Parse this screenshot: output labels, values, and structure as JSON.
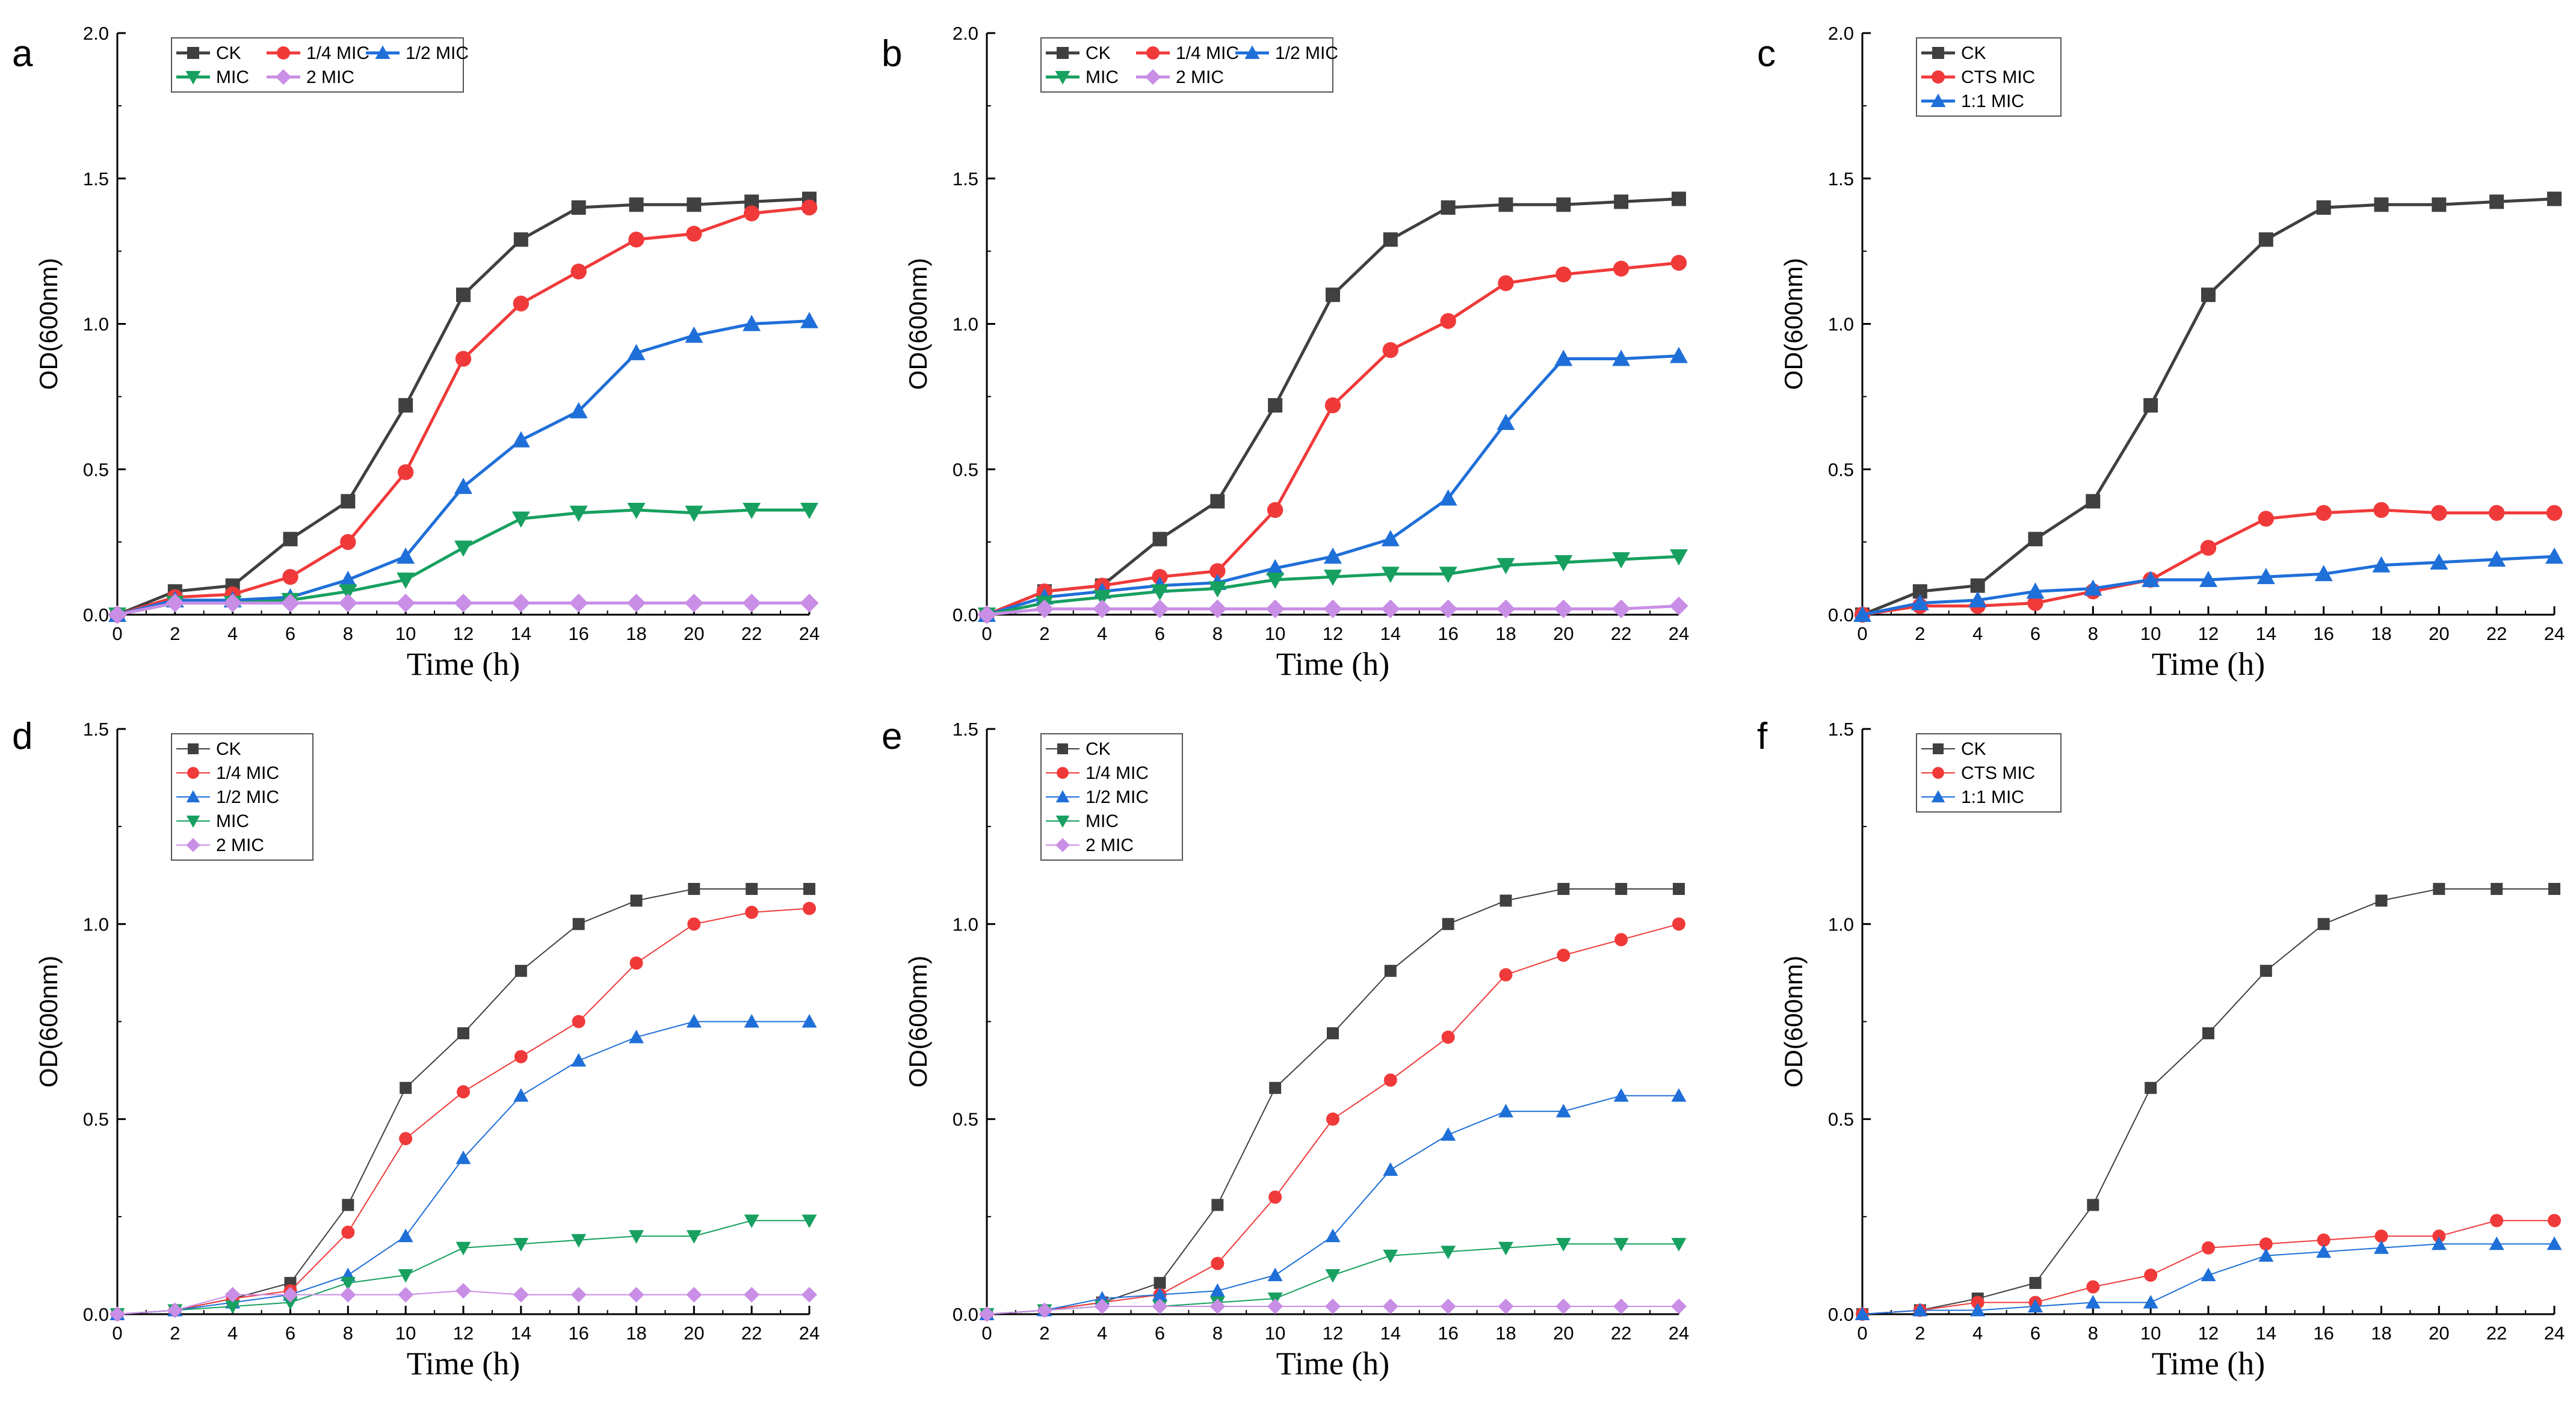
{
  "figure": {
    "colors": {
      "CK": "#404040",
      "1/4 MIC": "#f03a3a",
      "CTS MIC": "#f03a3a",
      "1/2 MIC": "#1f6fd8",
      "1:1  MIC": "#1f6fd8",
      "1:1 MIC": "#1f6fd8",
      "MIC": "#17a060",
      "2 MIC": "#c98ee6"
    },
    "markers": {
      "CK": "square",
      "1/4 MIC": "circle",
      "CTS MIC": "circle",
      "1/2 MIC": "triangle-up",
      "1:1  MIC": "triangle-up",
      "1:1 MIC": "triangle-up",
      "MIC": "triangle-down",
      "2 MIC": "diamond"
    }
  },
  "chart_data": [
    {
      "panel": "a",
      "type": "line",
      "xlabel": "Time (h)",
      "ylabel": "OD(600nm)",
      "x": [
        0,
        2,
        4,
        6,
        8,
        10,
        12,
        14,
        16,
        18,
        20,
        22,
        24
      ],
      "xticks": [
        "0",
        "2",
        "4",
        "6",
        "8",
        "10",
        "12",
        "14",
        "16",
        "18",
        "20",
        "22",
        "24"
      ],
      "xlim": [
        0,
        24
      ],
      "ylim": [
        0,
        2.0
      ],
      "yticks": [
        "0.0",
        "0.5",
        "1.0",
        "1.5",
        "2.0"
      ],
      "legend": "top-left, 3 columns",
      "series": [
        {
          "name": "CK",
          "values": [
            0.0,
            0.08,
            0.1,
            0.26,
            0.39,
            0.72,
            1.1,
            1.29,
            1.4,
            1.41,
            1.41,
            1.42,
            1.43
          ]
        },
        {
          "name": "1/4 MIC",
          "values": [
            0.0,
            0.06,
            0.07,
            0.13,
            0.25,
            0.49,
            0.88,
            1.07,
            1.18,
            1.29,
            1.31,
            1.38,
            1.4
          ]
        },
        {
          "name": "1/2 MIC",
          "values": [
            0.0,
            0.05,
            0.05,
            0.06,
            0.12,
            0.2,
            0.44,
            0.6,
            0.7,
            0.9,
            0.96,
            1.0,
            1.01
          ]
        },
        {
          "name": "MIC",
          "values": [
            0.0,
            0.04,
            0.04,
            0.05,
            0.08,
            0.12,
            0.23,
            0.33,
            0.35,
            0.36,
            0.35,
            0.36,
            0.36
          ]
        },
        {
          "name": "2 MIC",
          "values": [
            0.0,
            0.04,
            0.04,
            0.04,
            0.04,
            0.04,
            0.04,
            0.04,
            0.04,
            0.04,
            0.04,
            0.04,
            0.04
          ]
        }
      ]
    },
    {
      "panel": "b",
      "type": "line",
      "xlabel": "Time (h)",
      "ylabel": "OD(600nm)",
      "x": [
        0,
        2,
        4,
        6,
        8,
        10,
        12,
        14,
        16,
        18,
        20,
        22,
        24
      ],
      "xticks": [
        "0",
        "2",
        "4",
        "6",
        "8",
        "10",
        "12",
        "14",
        "16",
        "18",
        "20",
        "22",
        "24"
      ],
      "xlim": [
        0,
        24
      ],
      "ylim": [
        0,
        2.0
      ],
      "yticks": [
        "0.0",
        "0.5",
        "1.0",
        "1.5",
        "2.0"
      ],
      "legend": "top-left, 3 columns",
      "series": [
        {
          "name": "CK",
          "values": [
            0.0,
            0.08,
            0.1,
            0.26,
            0.39,
            0.72,
            1.1,
            1.29,
            1.4,
            1.41,
            1.41,
            1.42,
            1.43
          ]
        },
        {
          "name": "1/4 MIC",
          "values": [
            0.0,
            0.08,
            0.1,
            0.13,
            0.15,
            0.36,
            0.72,
            0.91,
            1.01,
            1.14,
            1.17,
            1.19,
            1.21
          ]
        },
        {
          "name": "1/2 MIC",
          "values": [
            0.0,
            0.06,
            0.08,
            0.1,
            0.11,
            0.16,
            0.2,
            0.26,
            0.4,
            0.66,
            0.88,
            0.88,
            0.89
          ]
        },
        {
          "name": "MIC",
          "values": [
            0.0,
            0.04,
            0.06,
            0.08,
            0.09,
            0.12,
            0.13,
            0.14,
            0.14,
            0.17,
            0.18,
            0.19,
            0.2
          ]
        },
        {
          "name": "2 MIC",
          "values": [
            0.0,
            0.02,
            0.02,
            0.02,
            0.02,
            0.02,
            0.02,
            0.02,
            0.02,
            0.02,
            0.02,
            0.02,
            0.03
          ]
        }
      ]
    },
    {
      "panel": "c",
      "type": "line",
      "xlabel": "Time (h)",
      "ylabel": "OD(600nm)",
      "x": [
        0,
        2,
        4,
        6,
        8,
        10,
        12,
        14,
        16,
        18,
        20,
        22,
        24
      ],
      "xticks": [
        "0",
        "2",
        "4",
        "6",
        "8",
        "10",
        "12",
        "14",
        "16",
        "18",
        "20",
        "22",
        "24"
      ],
      "xlim": [
        0,
        24
      ],
      "ylim": [
        0,
        2.0
      ],
      "yticks": [
        "0.0",
        "0.5",
        "1.0",
        "1.5",
        "2.0"
      ],
      "legend": "top-left, 1 column",
      "series": [
        {
          "name": "CK",
          "values": [
            0.0,
            0.08,
            0.1,
            0.26,
            0.39,
            0.72,
            1.1,
            1.29,
            1.4,
            1.41,
            1.41,
            1.42,
            1.43
          ]
        },
        {
          "name": "CTS MIC",
          "values": [
            0.0,
            0.03,
            0.03,
            0.04,
            0.08,
            0.12,
            0.23,
            0.33,
            0.35,
            0.36,
            0.35,
            0.35,
            0.35
          ]
        },
        {
          "name": "1:1  MIC",
          "values": [
            0.0,
            0.04,
            0.05,
            0.08,
            0.09,
            0.12,
            0.12,
            0.13,
            0.14,
            0.17,
            0.18,
            0.19,
            0.2
          ]
        }
      ]
    },
    {
      "panel": "d",
      "type": "line",
      "xlabel": "Time (h)",
      "ylabel": "OD(600nm)",
      "x": [
        0,
        2,
        4,
        6,
        8,
        10,
        12,
        14,
        16,
        18,
        20,
        22,
        24
      ],
      "xticks": [
        "0",
        "2",
        "4",
        "6",
        "8",
        "10",
        "12",
        "14",
        "16",
        "18",
        "20",
        "22",
        "24"
      ],
      "xlim": [
        0,
        24
      ],
      "ylim": [
        0,
        1.5
      ],
      "yticks": [
        "0.0",
        "0.5",
        "1.0",
        "1.5"
      ],
      "legend": "top-left, 1 column",
      "series": [
        {
          "name": "CK",
          "values": [
            0.0,
            0.01,
            0.04,
            0.08,
            0.28,
            0.58,
            0.72,
            0.88,
            1.0,
            1.06,
            1.09,
            1.09,
            1.09
          ]
        },
        {
          "name": "1/4 MIC",
          "values": [
            0.0,
            0.01,
            0.04,
            0.06,
            0.21,
            0.45,
            0.57,
            0.66,
            0.75,
            0.9,
            1.0,
            1.03,
            1.04
          ]
        },
        {
          "name": "1/2 MIC",
          "values": [
            0.0,
            0.01,
            0.03,
            0.05,
            0.1,
            0.2,
            0.4,
            0.56,
            0.65,
            0.71,
            0.75,
            0.75,
            0.75
          ]
        },
        {
          "name": "MIC",
          "values": [
            0.0,
            0.01,
            0.02,
            0.03,
            0.08,
            0.1,
            0.17,
            0.18,
            0.19,
            0.2,
            0.2,
            0.24,
            0.24
          ]
        },
        {
          "name": "2 MIC",
          "values": [
            0.0,
            0.01,
            0.05,
            0.05,
            0.05,
            0.05,
            0.06,
            0.05,
            0.05,
            0.05,
            0.05,
            0.05,
            0.05
          ]
        }
      ]
    },
    {
      "panel": "e",
      "type": "line",
      "xlabel": "Time (h)",
      "ylabel": "OD(600nm)",
      "x": [
        0,
        2,
        4,
        6,
        8,
        10,
        12,
        14,
        16,
        18,
        20,
        22,
        24
      ],
      "xticks": [
        "0",
        "2",
        "4",
        "6",
        "8",
        "10",
        "12",
        "14",
        "16",
        "18",
        "20",
        "22",
        "24"
      ],
      "xlim": [
        0,
        24
      ],
      "ylim": [
        0,
        1.5
      ],
      "yticks": [
        "0.0",
        "0.5",
        "1.0",
        "1.5"
      ],
      "legend": "top-left, 1 column",
      "series": [
        {
          "name": "CK",
          "values": [
            0.0,
            0.01,
            0.03,
            0.08,
            0.28,
            0.58,
            0.72,
            0.88,
            1.0,
            1.06,
            1.09,
            1.09,
            1.09
          ]
        },
        {
          "name": "1/4 MIC",
          "values": [
            0.0,
            0.01,
            0.03,
            0.05,
            0.13,
            0.3,
            0.5,
            0.6,
            0.71,
            0.87,
            0.92,
            0.96,
            1.0
          ]
        },
        {
          "name": "1/2 MIC",
          "values": [
            0.0,
            0.01,
            0.04,
            0.05,
            0.06,
            0.1,
            0.2,
            0.37,
            0.46,
            0.52,
            0.52,
            0.56,
            0.56
          ]
        },
        {
          "name": "MIC",
          "values": [
            0.0,
            0.01,
            0.02,
            0.02,
            0.03,
            0.04,
            0.1,
            0.15,
            0.16,
            0.17,
            0.18,
            0.18,
            0.18
          ]
        },
        {
          "name": "2 MIC",
          "values": [
            0.0,
            0.01,
            0.02,
            0.02,
            0.02,
            0.02,
            0.02,
            0.02,
            0.02,
            0.02,
            0.02,
            0.02,
            0.02
          ]
        }
      ]
    },
    {
      "panel": "f",
      "type": "line",
      "xlabel": "Time (h)",
      "ylabel": "OD(600nm)",
      "x": [
        0,
        2,
        4,
        6,
        8,
        10,
        12,
        14,
        16,
        18,
        20,
        22,
        24
      ],
      "xticks": [
        "0",
        "2",
        "4",
        "6",
        "8",
        "10",
        "12",
        "14",
        "16",
        "18",
        "20",
        "22",
        "24"
      ],
      "xlim": [
        0,
        24
      ],
      "ylim": [
        0,
        1.5
      ],
      "yticks": [
        "0.0",
        "0.5",
        "1.0",
        "1.5"
      ],
      "legend": "top-left, 1 column",
      "series": [
        {
          "name": "CK",
          "values": [
            0.0,
            0.01,
            0.04,
            0.08,
            0.28,
            0.58,
            0.72,
            0.88,
            1.0,
            1.06,
            1.09,
            1.09,
            1.09
          ]
        },
        {
          "name": "CTS MIC",
          "values": [
            0.0,
            0.01,
            0.03,
            0.03,
            0.07,
            0.1,
            0.17,
            0.18,
            0.19,
            0.2,
            0.2,
            0.24,
            0.24
          ]
        },
        {
          "name": "1:1 MIC",
          "values": [
            0.0,
            0.01,
            0.01,
            0.02,
            0.03,
            0.03,
            0.1,
            0.15,
            0.16,
            0.17,
            0.18,
            0.18,
            0.18
          ]
        }
      ]
    }
  ]
}
